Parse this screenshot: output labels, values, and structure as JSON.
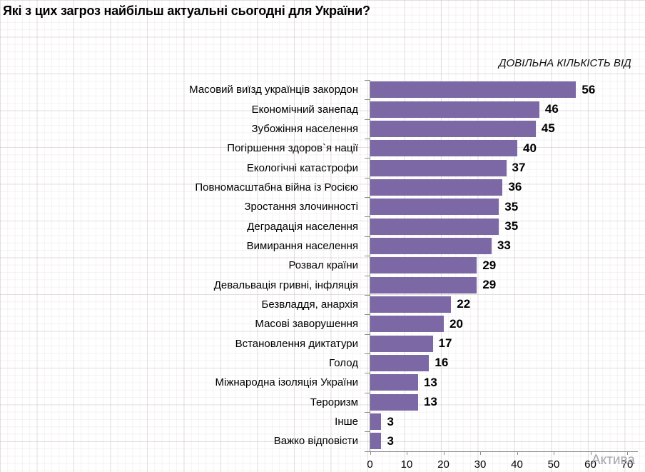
{
  "header": {
    "title": "Які з цих загроз найбільш актуальні сьогодні для України?"
  },
  "annotation": "ДОВІЛЬНА КІЛЬКІСТЬ ВІД",
  "watermark": {
    "text": "Актива"
  },
  "colors": {
    "bar": "#7b68a4",
    "axis": "#8c8c8c",
    "text": "#000000",
    "watermark": "#a3a3ab"
  },
  "chart_data": {
    "type": "bar",
    "orientation": "horizontal",
    "title": "Які з цих загроз найбільш актуальні сьогодні для України?",
    "annotation": "ДОВІЛЬНА КІЛЬКІСТЬ ВІД",
    "categories": [
      "Масовий виїзд українців закордон",
      "Економічний занепад",
      "Зубожіння населення",
      "Погіршення здоров`я нації",
      "Екологічні катастрофи",
      "Повномасштабна війна із Росією",
      "Зростання злочинності",
      "Деградація населення",
      "Вимирання населення",
      "Розвал країни",
      "Девальвація гривні, інфляція",
      "Безвладдя, анархія",
      "Масові заворушення",
      "Встановлення диктатури",
      "Голод",
      "Міжнародна ізоляція України",
      "Тероризм",
      "Інше",
      "Важко відповісти"
    ],
    "values": [
      56,
      46,
      45,
      40,
      37,
      36,
      35,
      35,
      33,
      29,
      29,
      22,
      20,
      17,
      16,
      13,
      13,
      3,
      3
    ],
    "xlabel": "",
    "ylabel": "",
    "xlim": [
      0,
      70
    ],
    "xticks": [
      0,
      10,
      20,
      30,
      40,
      50,
      60,
      70
    ],
    "grid": true,
    "legend": false
  }
}
